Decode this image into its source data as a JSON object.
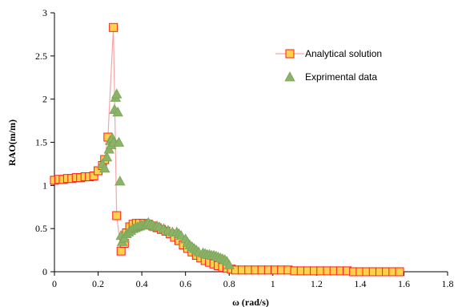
{
  "chart_data": {
    "type": "scatter",
    "title": "",
    "xlabel": "ω (rad/s)",
    "ylabel": "RAO(m/m)",
    "xlim": [
      0,
      1.8
    ],
    "ylim": [
      0,
      3
    ],
    "xticks": [
      "0",
      "0.2",
      "0.4",
      "0.6",
      "0.8",
      "1",
      "1.2",
      "1.4",
      "1.6",
      "1.8"
    ],
    "yticks": [
      "0",
      "0.5",
      "1",
      "1.5",
      "2",
      "2.5",
      "3"
    ],
    "grid": false,
    "legend_position": "top-right",
    "series": [
      {
        "name": "Analytical solution",
        "marker": "square",
        "line_color": "#f4a6a6",
        "fill": "#ffd24d",
        "stroke": "#ff1a1a",
        "points": [
          [
            0.0,
            1.06
          ],
          [
            0.02,
            1.07
          ],
          [
            0.04,
            1.07
          ],
          [
            0.06,
            1.08
          ],
          [
            0.08,
            1.08
          ],
          [
            0.1,
            1.09
          ],
          [
            0.12,
            1.09
          ],
          [
            0.14,
            1.1
          ],
          [
            0.16,
            1.1
          ],
          [
            0.18,
            1.11
          ],
          [
            0.2,
            1.17
          ],
          [
            0.22,
            1.23
          ],
          [
            0.23,
            1.3
          ],
          [
            0.245,
            1.56
          ],
          [
            0.27,
            2.83
          ],
          [
            0.285,
            0.65
          ],
          [
            0.305,
            0.24
          ],
          [
            0.32,
            0.33
          ],
          [
            0.33,
            0.45
          ],
          [
            0.345,
            0.52
          ],
          [
            0.36,
            0.55
          ],
          [
            0.375,
            0.56
          ],
          [
            0.39,
            0.56
          ],
          [
            0.41,
            0.56
          ],
          [
            0.43,
            0.55
          ],
          [
            0.45,
            0.53
          ],
          [
            0.47,
            0.51
          ],
          [
            0.49,
            0.49
          ],
          [
            0.51,
            0.47
          ],
          [
            0.53,
            0.44
          ],
          [
            0.55,
            0.4
          ],
          [
            0.57,
            0.36
          ],
          [
            0.59,
            0.31
          ],
          [
            0.61,
            0.27
          ],
          [
            0.63,
            0.23
          ],
          [
            0.65,
            0.19
          ],
          [
            0.67,
            0.16
          ],
          [
            0.69,
            0.13
          ],
          [
            0.71,
            0.11
          ],
          [
            0.73,
            0.09
          ],
          [
            0.75,
            0.07
          ],
          [
            0.77,
            0.05
          ],
          [
            0.79,
            0.04
          ],
          [
            0.81,
            0.03
          ],
          [
            0.83,
            0.02
          ],
          [
            0.86,
            0.02
          ],
          [
            0.89,
            0.02
          ],
          [
            0.92,
            0.02
          ],
          [
            0.95,
            0.02
          ],
          [
            0.98,
            0.02
          ],
          [
            1.01,
            0.02
          ],
          [
            1.04,
            0.02
          ],
          [
            1.07,
            0.02
          ],
          [
            1.1,
            0.01
          ],
          [
            1.13,
            0.01
          ],
          [
            1.16,
            0.01
          ],
          [
            1.19,
            0.01
          ],
          [
            1.22,
            0.01
          ],
          [
            1.25,
            0.01
          ],
          [
            1.28,
            0.01
          ],
          [
            1.31,
            0.01
          ],
          [
            1.34,
            0.01
          ],
          [
            1.37,
            0.0
          ],
          [
            1.4,
            0.0
          ],
          [
            1.43,
            0.0
          ],
          [
            1.46,
            0.0
          ],
          [
            1.49,
            0.0
          ],
          [
            1.52,
            0.0
          ],
          [
            1.55,
            0.0
          ],
          [
            1.58,
            0.0
          ]
        ]
      },
      {
        "name": "Exprimental data",
        "marker": "triangle",
        "fill": "#8cb366",
        "stroke": "#7aa358",
        "points": [
          [
            0.22,
            1.25
          ],
          [
            0.23,
            1.2
          ],
          [
            0.24,
            1.33
          ],
          [
            0.25,
            1.42
          ],
          [
            0.255,
            1.52
          ],
          [
            0.26,
            1.47
          ],
          [
            0.265,
            1.55
          ],
          [
            0.27,
            1.5
          ],
          [
            0.275,
            1.88
          ],
          [
            0.28,
            2.02
          ],
          [
            0.285,
            2.06
          ],
          [
            0.29,
            1.85
          ],
          [
            0.295,
            1.5
          ],
          [
            0.3,
            1.05
          ],
          [
            0.305,
            0.42
          ],
          [
            0.31,
            0.35
          ],
          [
            0.32,
            0.39
          ],
          [
            0.33,
            0.44
          ],
          [
            0.34,
            0.46
          ],
          [
            0.35,
            0.48
          ],
          [
            0.36,
            0.5
          ],
          [
            0.37,
            0.51
          ],
          [
            0.38,
            0.52
          ],
          [
            0.39,
            0.53
          ],
          [
            0.4,
            0.54
          ],
          [
            0.41,
            0.54
          ],
          [
            0.42,
            0.55
          ],
          [
            0.43,
            0.57
          ],
          [
            0.44,
            0.55
          ],
          [
            0.45,
            0.54
          ],
          [
            0.46,
            0.52
          ],
          [
            0.47,
            0.53
          ],
          [
            0.48,
            0.52
          ],
          [
            0.5,
            0.5
          ],
          [
            0.52,
            0.48
          ],
          [
            0.54,
            0.46
          ],
          [
            0.56,
            0.46
          ],
          [
            0.57,
            0.44
          ],
          [
            0.58,
            0.42
          ],
          [
            0.6,
            0.38
          ],
          [
            0.61,
            0.34
          ],
          [
            0.62,
            0.31
          ],
          [
            0.63,
            0.29
          ],
          [
            0.64,
            0.27
          ],
          [
            0.65,
            0.25
          ],
          [
            0.66,
            0.23
          ],
          [
            0.68,
            0.22
          ],
          [
            0.69,
            0.21
          ],
          [
            0.7,
            0.2
          ],
          [
            0.71,
            0.2
          ],
          [
            0.72,
            0.19
          ],
          [
            0.73,
            0.19
          ],
          [
            0.74,
            0.18
          ],
          [
            0.75,
            0.17
          ],
          [
            0.76,
            0.16
          ],
          [
            0.77,
            0.15
          ],
          [
            0.78,
            0.14
          ],
          [
            0.79,
            0.12
          ],
          [
            0.8,
            0.08
          ]
        ]
      }
    ]
  }
}
